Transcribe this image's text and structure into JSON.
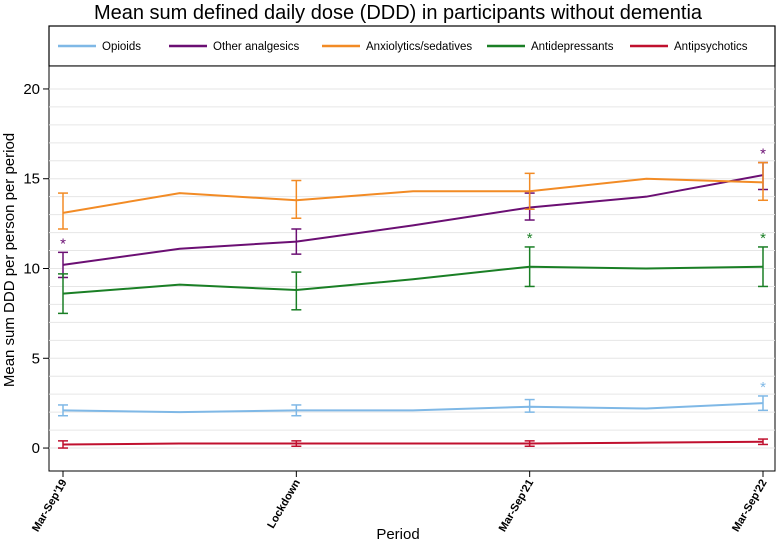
{
  "chart_data": {
    "type": "line",
    "title": "Mean sum defined daily dose (DDD) in participants without dementia",
    "xlabel": "Period",
    "ylabel": "Mean sum DDD per person per period",
    "ylim": [
      -1,
      21
    ],
    "yticks": [
      0,
      5,
      10,
      15,
      20
    ],
    "grid": true,
    "legend_position": "top",
    "x_positions": [
      0,
      1,
      2,
      3,
      4,
      5,
      6
    ],
    "xlim": [
      0,
      6
    ],
    "x_tick_positions": [
      0,
      2,
      4,
      6
    ],
    "x_tick_labels": [
      "Mar-Sep'19",
      "Lockdown",
      "Mar-Sep'21",
      "Mar-Sep'22"
    ],
    "series": [
      {
        "name": "Opioids",
        "color": "#7fb8e6",
        "values": [
          2.1,
          2.0,
          2.1,
          2.1,
          2.3,
          2.2,
          2.5
        ],
        "errors": [
          {
            "x": 0,
            "low": 1.8,
            "high": 2.4
          },
          {
            "x": 2,
            "low": 1.8,
            "high": 2.4
          },
          {
            "x": 4,
            "low": 2.0,
            "high": 2.7
          },
          {
            "x": 6,
            "low": 2.1,
            "high": 2.9
          }
        ],
        "significant": [
          6
        ]
      },
      {
        "name": "Other analgesics",
        "color": "#6b0f73",
        "values": [
          10.2,
          11.1,
          11.5,
          12.4,
          13.4,
          14.0,
          15.2
        ],
        "errors": [
          {
            "x": 0,
            "low": 9.5,
            "high": 10.9
          },
          {
            "x": 2,
            "low": 10.8,
            "high": 12.2
          },
          {
            "x": 4,
            "low": 12.7,
            "high": 14.2
          },
          {
            "x": 6,
            "low": 14.4,
            "high": 15.9
          }
        ],
        "significant": [
          0,
          6
        ]
      },
      {
        "name": "Anxiolytics/sedatives",
        "color": "#f28b25",
        "values": [
          13.1,
          14.2,
          13.8,
          14.3,
          14.3,
          15.0,
          14.8
        ],
        "errors": [
          {
            "x": 0,
            "low": 12.2,
            "high": 14.2
          },
          {
            "x": 2,
            "low": 12.8,
            "high": 14.9
          },
          {
            "x": 4,
            "low": 13.3,
            "high": 15.3
          },
          {
            "x": 6,
            "low": 13.8,
            "high": 15.9
          }
        ],
        "significant": []
      },
      {
        "name": "Antidepressants",
        "color": "#1a7f25",
        "values": [
          8.6,
          9.1,
          8.8,
          9.4,
          10.1,
          10.0,
          10.1
        ],
        "errors": [
          {
            "x": 0,
            "low": 7.5,
            "high": 9.7
          },
          {
            "x": 2,
            "low": 7.7,
            "high": 9.8
          },
          {
            "x": 4,
            "low": 9.0,
            "high": 11.2
          },
          {
            "x": 6,
            "low": 9.0,
            "high": 11.2
          }
        ],
        "significant": [
          4,
          6
        ]
      },
      {
        "name": "Antipsychotics",
        "color": "#c0102e",
        "values": [
          0.2,
          0.25,
          0.25,
          0.25,
          0.25,
          0.3,
          0.35
        ],
        "errors": [
          {
            "x": 0,
            "low": 0.0,
            "high": 0.4
          },
          {
            "x": 2,
            "low": 0.1,
            "high": 0.4
          },
          {
            "x": 4,
            "low": 0.1,
            "high": 0.4
          },
          {
            "x": 6,
            "low": 0.2,
            "high": 0.5
          }
        ],
        "significant": []
      }
    ],
    "significance_marker": "*"
  }
}
